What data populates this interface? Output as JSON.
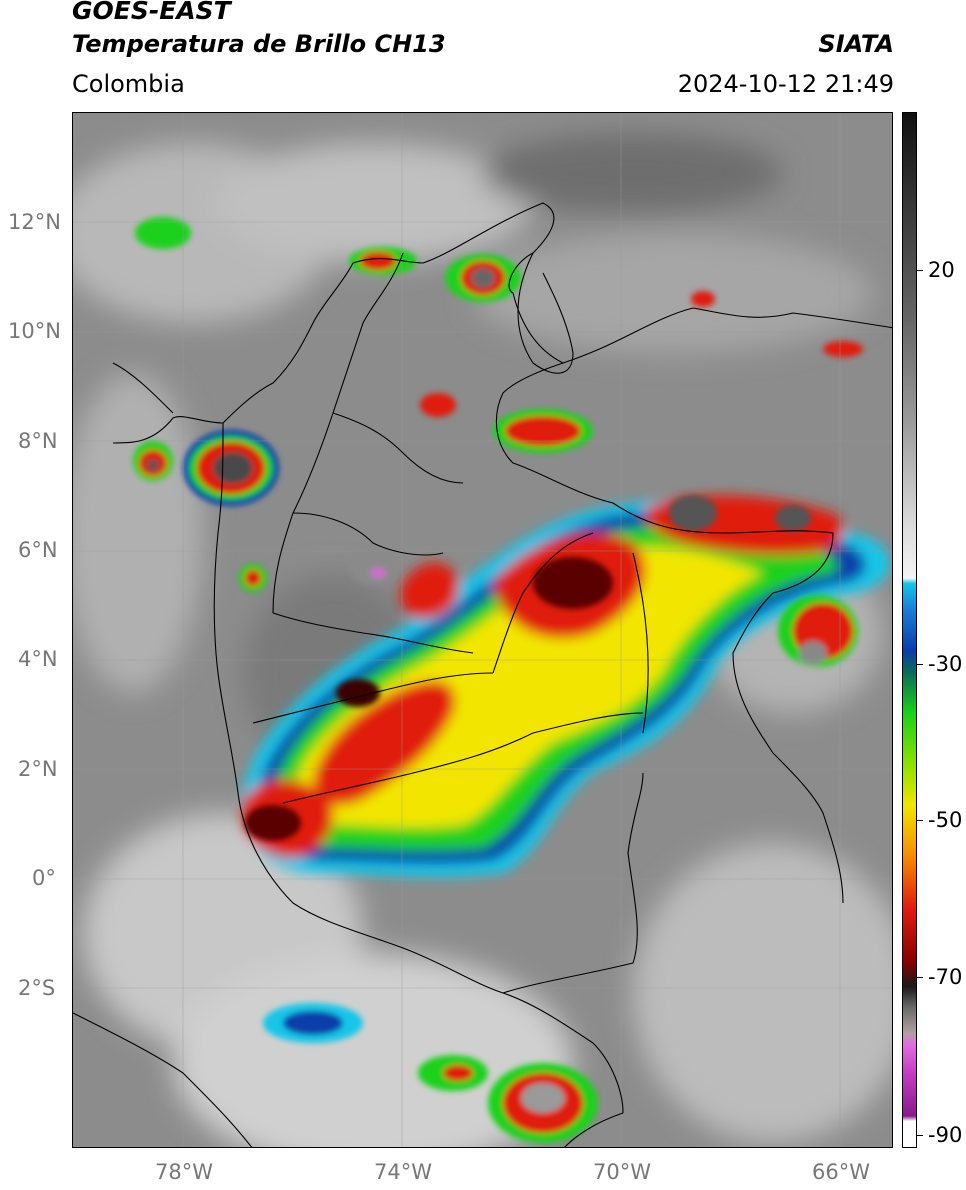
{
  "header": {
    "satellite": "GOES-EAST",
    "product": "Temperatura de Brillo CH13",
    "region": "Colombia",
    "organization": "SIATA",
    "datetime": "2024-10-12 21:49"
  },
  "axes": {
    "latitude_labels": [
      "12°N",
      "10°N",
      "8°N",
      "6°N",
      "4°N",
      "2°N",
      "0°",
      "2°S"
    ],
    "longitude_labels": [
      "78°W",
      "74°W",
      "70°W",
      "66°W"
    ],
    "lon_range": [
      -80,
      -65
    ],
    "lat_range": [
      -5,
      14
    ]
  },
  "colorbar": {
    "tick_labels": [
      "20",
      "-30",
      "-50",
      "-70",
      "-90"
    ],
    "colors": {
      "warm_gray": "#9c9c9c",
      "cyan": "#13c6e8",
      "blue": "#0a3da8",
      "green": "#1ad11a",
      "yellow": "#f2e600",
      "orange": "#f58a00",
      "red": "#e01a10",
      "dark_red": "#5a0000",
      "magenta": "#c23cc2"
    }
  }
}
